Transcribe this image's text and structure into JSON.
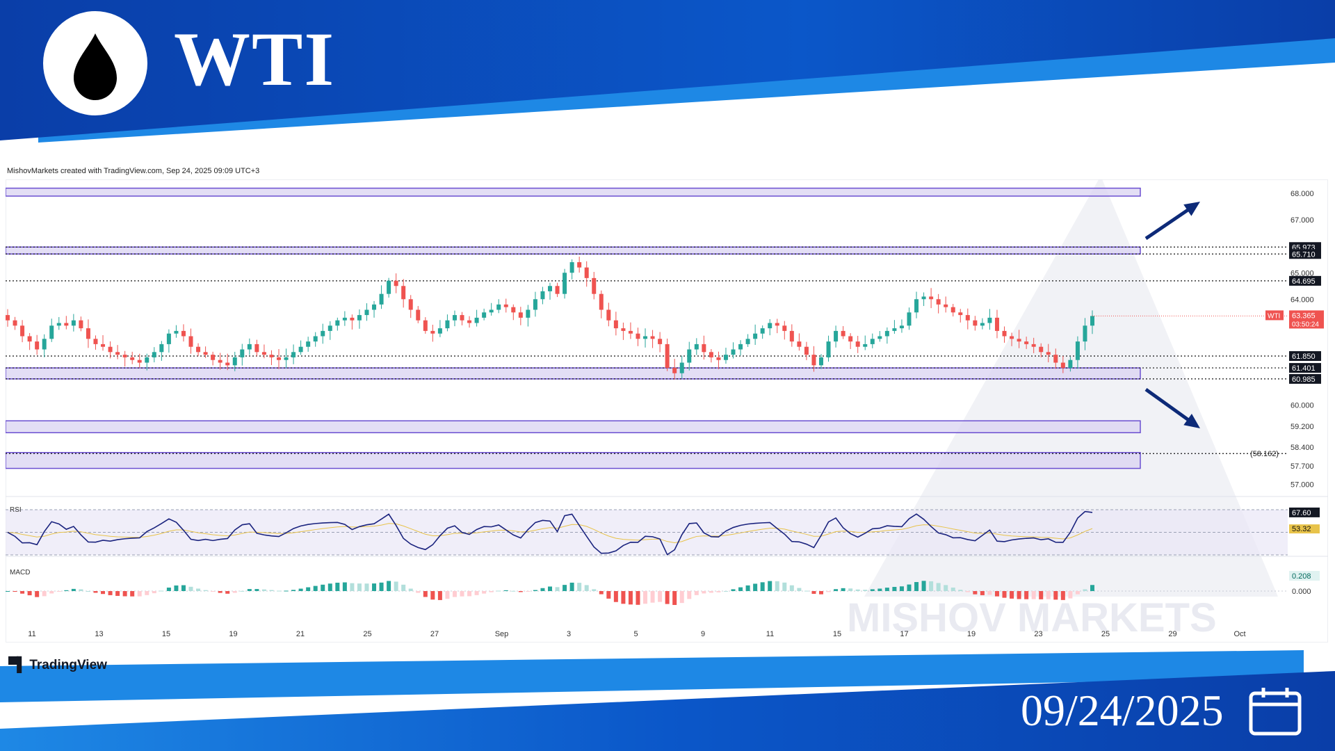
{
  "header": {
    "title": "WTI",
    "logo_icon": "oil-drop-icon",
    "credit": "MishovMarkets created with TradingView.com, Sep 24, 2025 09:09 UTC+3"
  },
  "footer": {
    "tradingview_label": "TradingView",
    "date": "09/24/2025",
    "calendar_icon": "calendar-icon"
  },
  "watermark": "MISHOV MARKETS",
  "colors": {
    "bull": "#26a69a",
    "bear": "#ef5350",
    "zone_fill": "#d9d3f1",
    "zone_border": "#6b4fd1",
    "arrow": "#0d2a78",
    "banner_dark": "#0a3ea8",
    "banner_light": "#1e88e5",
    "rsi_line": "#1a237e",
    "rsi_ma": "#e8c34a"
  },
  "chart_data": {
    "type": "candlestick",
    "symbol": "WTI",
    "price_axis": {
      "ylim": [
        56.8,
        68.4
      ],
      "ticks": [
        "68.000",
        "67.000",
        "65.000",
        "64.000",
        "60.000",
        "59.200",
        "58.400",
        "57.700",
        "57.000"
      ]
    },
    "x_axis": {
      "labels": [
        "11",
        "13",
        "15",
        "19",
        "21",
        "25",
        "27",
        "Sep",
        "3",
        "5",
        "9",
        "11",
        "15",
        "17",
        "19",
        "23",
        "25",
        "29",
        "Oct"
      ]
    },
    "level_lines": [
      {
        "value": 65.973,
        "label": "65.973",
        "style": "boxed"
      },
      {
        "value": 65.71,
        "label": "65.710",
        "style": "boxed"
      },
      {
        "value": 64.695,
        "label": "64.695",
        "style": "boxed"
      },
      {
        "value": 61.85,
        "label": "61.850",
        "style": "boxed"
      },
      {
        "value": 61.401,
        "label": "61.401",
        "style": "boxed"
      },
      {
        "value": 60.985,
        "label": "60.985",
        "style": "boxed"
      },
      {
        "value": 58.162,
        "label": "(58.162)",
        "style": "plain"
      }
    ],
    "zones": [
      {
        "low": 67.9,
        "high": 68.2
      },
      {
        "low": 65.71,
        "high": 65.973
      },
      {
        "low": 60.985,
        "high": 61.401
      },
      {
        "low": 58.95,
        "high": 59.4
      },
      {
        "low": 57.6,
        "high": 58.2
      }
    ],
    "current_price": {
      "symbol": "WTI",
      "price": "63.365",
      "countdown": "03:50:24"
    },
    "arrows": [
      {
        "direction": "up"
      },
      {
        "direction": "down"
      }
    ],
    "close_series": [
      63.2,
      63.0,
      62.6,
      62.4,
      62.1,
      62.5,
      63.0,
      63.1,
      63.0,
      63.2,
      62.9,
      62.5,
      62.3,
      62.2,
      62.0,
      61.9,
      61.8,
      61.7,
      61.6,
      61.8,
      62.0,
      62.3,
      62.7,
      62.8,
      62.6,
      62.2,
      62.0,
      61.9,
      61.7,
      61.6,
      61.5,
      61.8,
      62.1,
      62.3,
      62.0,
      61.9,
      61.8,
      61.7,
      61.8,
      62.0,
      62.2,
      62.4,
      62.6,
      62.8,
      63.0,
      63.2,
      63.3,
      63.2,
      63.4,
      63.6,
      63.8,
      64.2,
      64.7,
      64.5,
      64.0,
      63.6,
      63.2,
      62.8,
      62.7,
      62.9,
      63.2,
      63.4,
      63.2,
      63.1,
      63.3,
      63.5,
      63.6,
      63.8,
      63.7,
      63.5,
      63.3,
      63.6,
      64.0,
      64.3,
      64.5,
      64.2,
      65.0,
      65.4,
      65.2,
      64.8,
      64.2,
      63.6,
      63.2,
      62.9,
      62.8,
      62.7,
      62.5,
      62.6,
      62.5,
      62.3,
      61.4,
      61.2,
      61.6,
      62.1,
      62.3,
      62.0,
      61.8,
      61.7,
      61.9,
      62.1,
      62.3,
      62.5,
      62.7,
      62.9,
      63.1,
      63.0,
      62.8,
      62.4,
      62.2,
      61.9,
      61.5,
      61.8,
      62.4,
      62.8,
      62.6,
      62.4,
      62.2,
      62.3,
      62.5,
      62.6,
      62.8,
      62.9,
      63.0,
      63.5,
      64.0,
      64.1,
      64.0,
      63.8,
      63.7,
      63.5,
      63.4,
      63.2,
      63.0,
      63.1,
      63.3,
      62.8,
      62.6,
      62.5,
      62.4,
      62.3,
      62.2,
      62.0,
      61.9,
      61.6,
      61.4,
      61.7,
      62.4,
      63.0,
      63.365
    ]
  }
}
